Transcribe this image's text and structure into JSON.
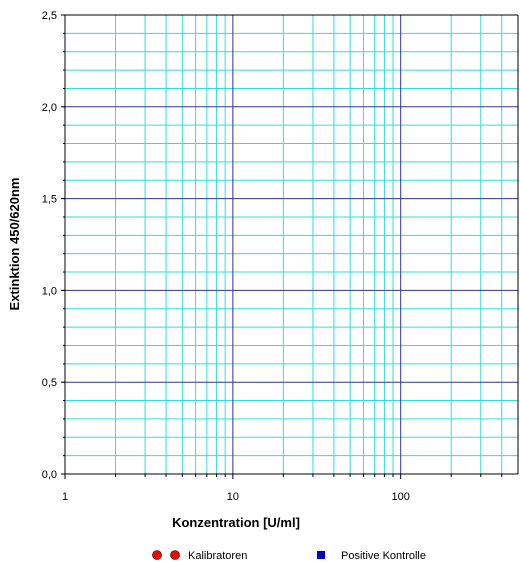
{
  "chart_data": {
    "type": "scatter",
    "title": "",
    "xlabel": "Konzentration [U/ml]",
    "ylabel": "Extinktion 450/620nm",
    "x_scale": "log",
    "xlim": [
      1,
      500
    ],
    "ylim": [
      0,
      2.5
    ],
    "x_ticks": [
      {
        "value": 1,
        "label": "1"
      },
      {
        "value": 10,
        "label": "10"
      },
      {
        "value": 100,
        "label": "100"
      }
    ],
    "y_ticks": [
      {
        "value": 0,
        "label": "0,0"
      },
      {
        "value": 0.5,
        "label": "0,5"
      },
      {
        "value": 1.0,
        "label": "1,0"
      },
      {
        "value": 1.5,
        "label": "1,5"
      },
      {
        "value": 2.0,
        "label": "2,0"
      },
      {
        "value": 2.5,
        "label": "2,5"
      }
    ],
    "y_minor_step": 0.1,
    "grid": true,
    "legend_position": "bottom",
    "series": [
      {
        "name": "Kalibratoren",
        "marker": "circle",
        "color": "#ff0000",
        "x": [],
        "y": []
      },
      {
        "name": "Positive Kontrolle",
        "marker": "square",
        "color": "#0000cc",
        "x": [],
        "y": []
      }
    ],
    "colors": {
      "minor_grid": "#33dddd",
      "major_grid": "#333399",
      "axis": "#000000"
    }
  }
}
